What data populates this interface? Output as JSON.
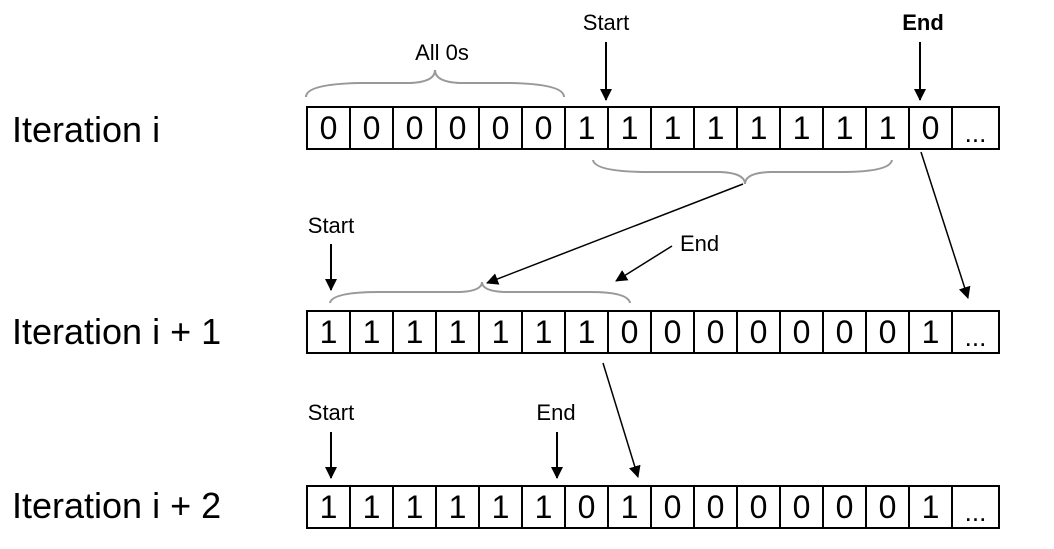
{
  "rows": [
    {
      "label": "Iteration i",
      "cells": [
        "0",
        "0",
        "0",
        "0",
        "0",
        "0",
        "1",
        "1",
        "1",
        "1",
        "1",
        "1",
        "1",
        "1",
        "0",
        "..."
      ]
    },
    {
      "label": "Iteration i + 1",
      "cells": [
        "1",
        "1",
        "1",
        "1",
        "1",
        "1",
        "1",
        "0",
        "0",
        "0",
        "0",
        "0",
        "0",
        "0",
        "1",
        "..."
      ]
    },
    {
      "label": "Iteration i + 2",
      "cells": [
        "1",
        "1",
        "1",
        "1",
        "1",
        "1",
        "0",
        "1",
        "0",
        "0",
        "0",
        "0",
        "0",
        "0",
        "1",
        "..."
      ]
    }
  ],
  "annotations": {
    "all_zeros": "All 0s",
    "start_row1": "Start",
    "end_row1": "End",
    "start_row2": "Start",
    "end_row2": "End",
    "start_row3": "Start",
    "end_row3": "End"
  }
}
